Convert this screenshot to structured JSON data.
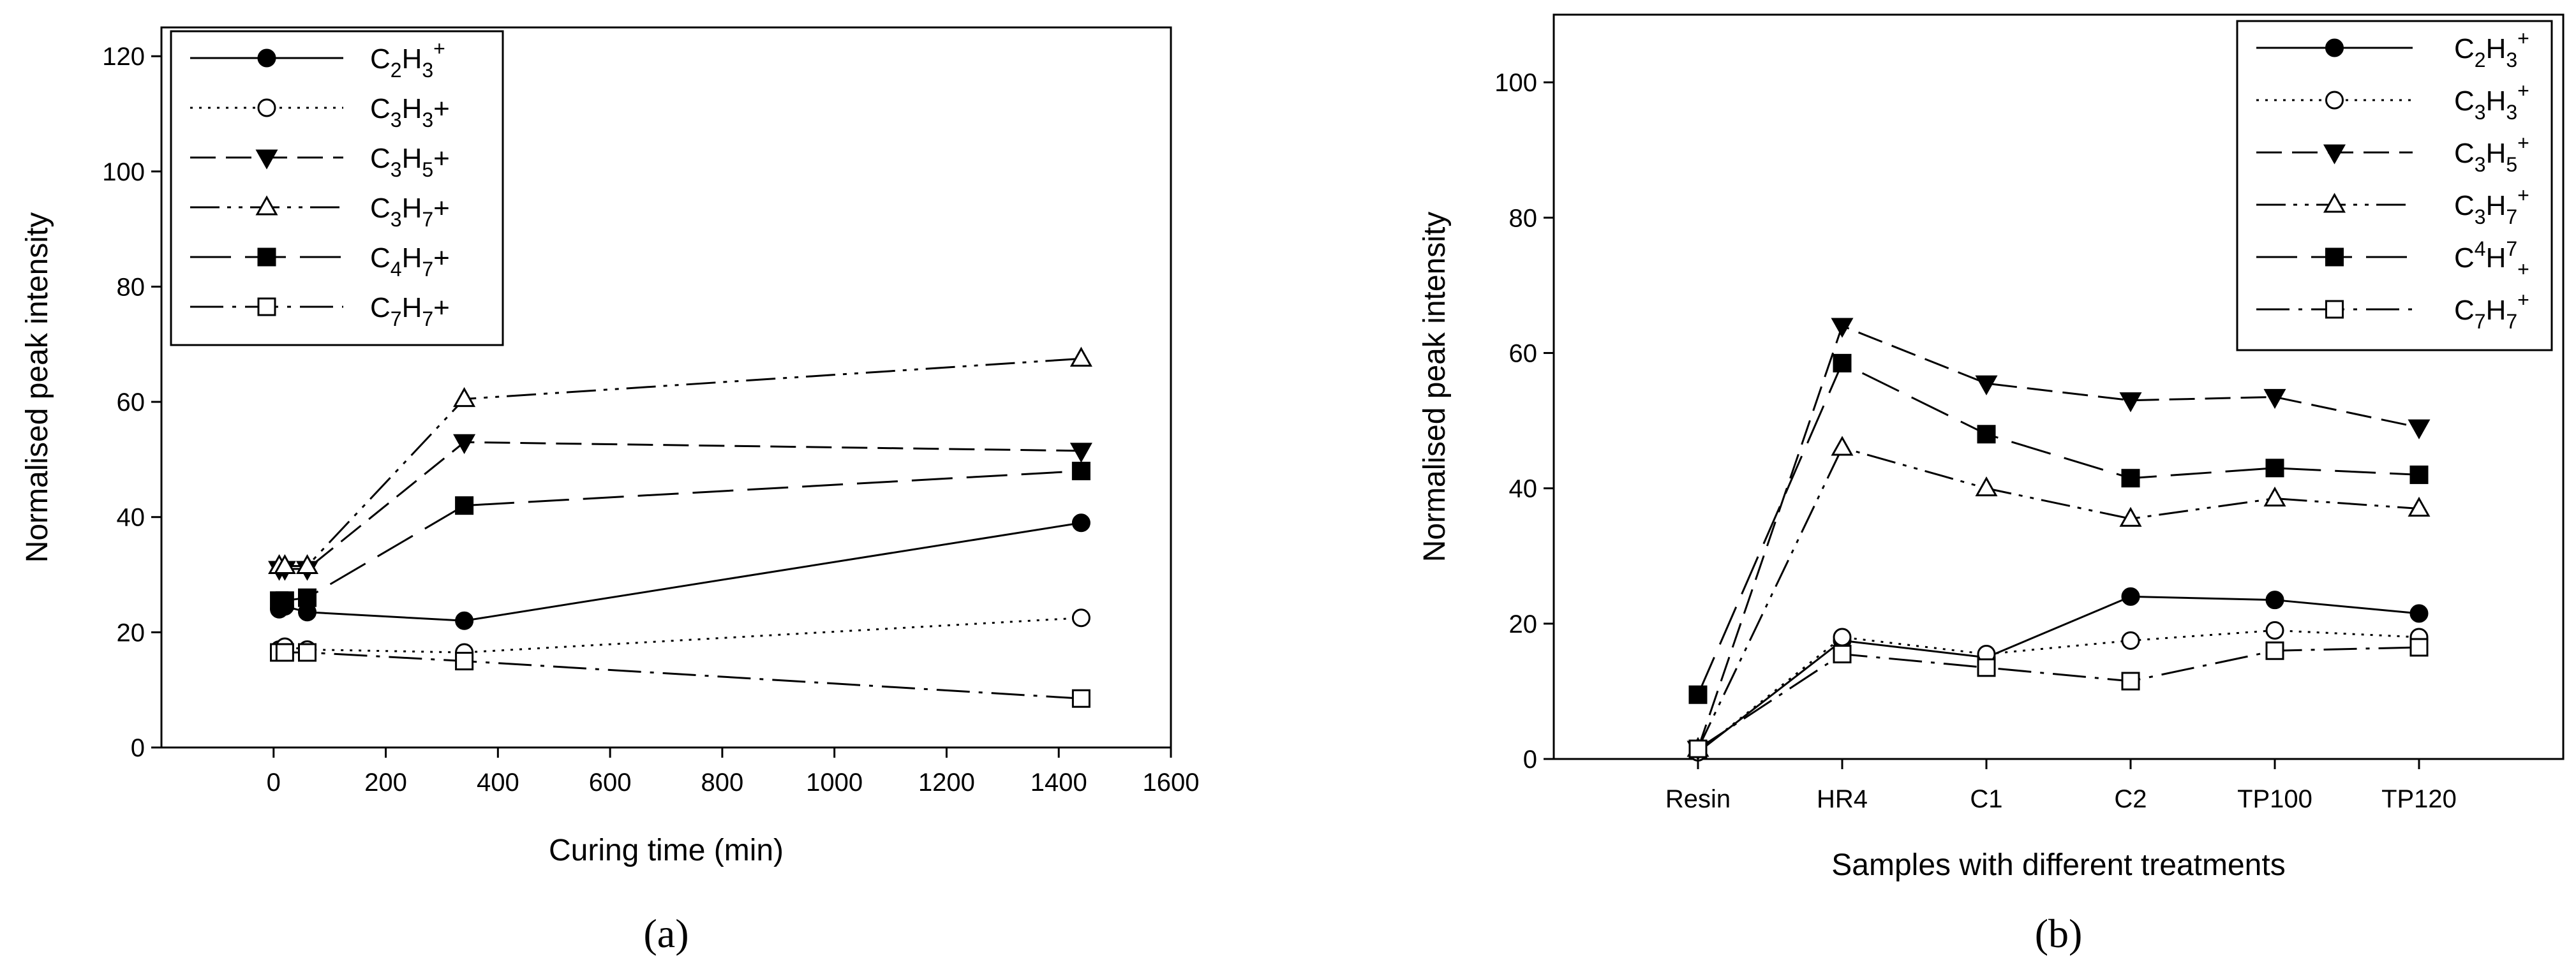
{
  "chart_data": [
    {
      "panel": "a",
      "type": "line",
      "xlabel": "Curing time (min)",
      "ylabel": "Normalised peak intensity",
      "xlim": [
        -200,
        1600
      ],
      "ylim": [
        0,
        125
      ],
      "xticks": [
        0,
        200,
        400,
        600,
        800,
        1000,
        1200,
        1400,
        1600
      ],
      "yticks": [
        0,
        20,
        40,
        60,
        80,
        100,
        120
      ],
      "legend_position": "top-left",
      "x": [
        10,
        20,
        60,
        340,
        1440
      ],
      "series": [
        {
          "name": "C2H3+",
          "label": {
            "base": "C",
            "s1": "2",
            "mid": "H",
            "s2": "3",
            "sup": "+",
            "tail": ""
          },
          "marker": "circle-filled",
          "dash": "solid",
          "values": [
            24,
            24.5,
            23.5,
            22,
            39
          ]
        },
        {
          "name": "C3H3+",
          "label": {
            "base": "C",
            "s1": "3",
            "mid": "H",
            "s2": "3",
            "sup": "",
            "tail": "+"
          },
          "marker": "circle-open",
          "dash": "dotted",
          "values": [
            17,
            17.5,
            17,
            16.5,
            22.5
          ]
        },
        {
          "name": "C3H5+",
          "label": {
            "base": "C",
            "s1": "3",
            "mid": "H",
            "s2": "5",
            "sup": "",
            "tail": "+"
          },
          "marker": "triangle-down-filled",
          "dash": "dashed",
          "values": [
            31,
            31,
            31,
            53,
            51.5
          ]
        },
        {
          "name": "C3H7+",
          "label": {
            "base": "C",
            "s1": "3",
            "mid": "H",
            "s2": "7",
            "sup": "",
            "tail": "+"
          },
          "marker": "triangle-up-open",
          "dash": "dash-dot-dot",
          "values": [
            31.5,
            31.5,
            31.5,
            60.5,
            67.5
          ]
        },
        {
          "name": "C4H7+",
          "label": {
            "base": "C",
            "s1": "4",
            "mid": "H",
            "s2": "7",
            "sup": "",
            "tail": "+"
          },
          "marker": "square-filled",
          "dash": "long-dash",
          "values": [
            25.5,
            25.5,
            26,
            42,
            48
          ]
        },
        {
          "name": "C7H7+",
          "label": {
            "base": "C",
            "s1": "7",
            "mid": "H",
            "s2": "7",
            "sup": "",
            "tail": "+"
          },
          "marker": "square-open",
          "dash": "dash-dot",
          "values": [
            16.5,
            16.5,
            16.5,
            15,
            8.5
          ]
        }
      ]
    },
    {
      "panel": "b",
      "type": "line",
      "xlabel": "Samples with different treatments",
      "ylabel": "Normalised peak intensity",
      "ylim": [
        0,
        110
      ],
      "yticks": [
        0,
        20,
        40,
        60,
        80,
        100
      ],
      "categories": [
        "Resin",
        "HR4",
        "C1",
        "C2",
        "TP100",
        "TP120"
      ],
      "legend_position": "top-right",
      "series": [
        {
          "name": "C2H3+",
          "label": {
            "base": "C",
            "s1": "2",
            "mid": "H",
            "s2": "3",
            "sup": "+",
            "tail": ""
          },
          "marker": "circle-filled",
          "dash": "solid",
          "values": [
            1,
            17.5,
            15,
            24,
            23.5,
            21.5
          ]
        },
        {
          "name": "C3H3+",
          "label": {
            "base": "C",
            "s1": "3",
            "mid": "H",
            "s2": "3",
            "sup": "+",
            "tail": ""
          },
          "marker": "circle-open",
          "dash": "dotted",
          "values": [
            1,
            18,
            15.5,
            17.5,
            19,
            18
          ]
        },
        {
          "name": "C3H5+",
          "label": {
            "base": "C",
            "s1": "3",
            "mid": "H",
            "s2": "5",
            "sup": "+",
            "tail": ""
          },
          "marker": "triangle-down-filled",
          "dash": "dashed",
          "values": [
            1.5,
            64,
            55.5,
            53,
            53.5,
            49
          ]
        },
        {
          "name": "C3H7+",
          "label": {
            "base": "C",
            "s1": "3",
            "mid": "H",
            "s2": "7",
            "sup": "+",
            "tail": ""
          },
          "marker": "triangle-up-open",
          "dash": "dash-dot-dot",
          "values": [
            1.5,
            46,
            40,
            35.5,
            38.5,
            37
          ]
        },
        {
          "name": "C4H7+",
          "label": {
            "base": "C",
            "sup1": "4",
            "mid": "H",
            "sup": "7",
            "sub2": "+"
          },
          "marker": "square-filled",
          "dash": "long-dash",
          "values": [
            9.5,
            58.5,
            48,
            41.5,
            43,
            42
          ]
        },
        {
          "name": "C7H7+",
          "label": {
            "base": "C",
            "s1": "7",
            "mid": "H",
            "s2": "7",
            "sup": "+",
            "tail": ""
          },
          "marker": "square-open",
          "dash": "dash-dot",
          "values": [
            1.5,
            15.5,
            13.5,
            11.5,
            16,
            16.5
          ]
        }
      ]
    }
  ],
  "panel_labels": {
    "a": "(a)",
    "b": "(b)"
  },
  "colors": {
    "ink": "#000000",
    "background": "#ffffff"
  }
}
